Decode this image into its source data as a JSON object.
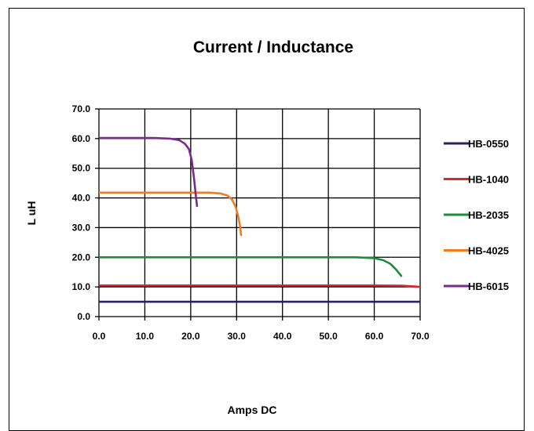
{
  "chart_data": {
    "type": "line",
    "title": "Current / Inductance",
    "xlabel": "Amps DC",
    "ylabel": "L uH",
    "xlim": [
      0,
      70
    ],
    "ylim": [
      0,
      70
    ],
    "x_ticks": [
      "0.0",
      "10.0",
      "20.0",
      "30.0",
      "40.0",
      "50.0",
      "60.0",
      "70.0"
    ],
    "y_ticks": [
      "0.0",
      "10.0",
      "20.0",
      "30.0",
      "40.0",
      "50.0",
      "60.0",
      "70.0"
    ],
    "grid": true,
    "legend_position": "right",
    "series": [
      {
        "name": "HB-0550",
        "color": "#2b1f5c",
        "points": [
          [
            0,
            5
          ],
          [
            70,
            5
          ]
        ]
      },
      {
        "name": "HB-1040",
        "color": "#e0262a",
        "points": [
          [
            0,
            10.5
          ],
          [
            60,
            10.5
          ],
          [
            66,
            10.4
          ],
          [
            70,
            10
          ]
        ]
      },
      {
        "name": "HB-2035",
        "color": "#1f8a3c",
        "points": [
          [
            0,
            20
          ],
          [
            56,
            20
          ],
          [
            60,
            19.7
          ],
          [
            62,
            19
          ],
          [
            63.5,
            17.8
          ],
          [
            64.8,
            15.8
          ],
          [
            66,
            13.5
          ]
        ]
      },
      {
        "name": "HB-4025",
        "color": "#f07d1b",
        "points": [
          [
            0,
            41.8
          ],
          [
            24,
            41.8
          ],
          [
            26.5,
            41.5
          ],
          [
            28,
            40.8
          ],
          [
            29,
            39.5
          ],
          [
            29.8,
            37
          ],
          [
            30.4,
            33.5
          ],
          [
            30.8,
            30
          ],
          [
            31,
            27.2
          ]
        ]
      },
      {
        "name": "HB-6015",
        "color": "#7a2a8c",
        "points": [
          [
            0,
            60.2
          ],
          [
            12,
            60.2
          ],
          [
            15.5,
            60
          ],
          [
            17.5,
            59.5
          ],
          [
            18.7,
            58.3
          ],
          [
            19.6,
            56.5
          ],
          [
            20.2,
            53
          ],
          [
            20.7,
            47
          ],
          [
            21.1,
            41
          ],
          [
            21.4,
            37
          ]
        ]
      }
    ]
  }
}
